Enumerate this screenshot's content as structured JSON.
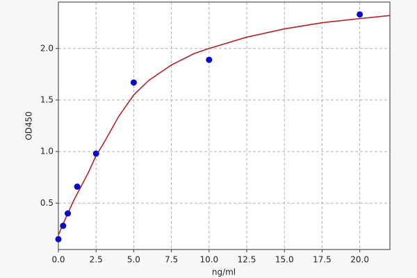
{
  "chart_data": {
    "type": "scatter",
    "xlabel": "ng/ml",
    "ylabel": "OD450",
    "x": [
      0,
      0.3125,
      0.625,
      1.25,
      2.5,
      5,
      10,
      20
    ],
    "values": [
      0.15,
      0.28,
      0.4,
      0.66,
      0.98,
      1.67,
      1.89,
      2.33
    ],
    "color": "#0a0acc",
    "curve": {
      "color": "#b22222",
      "x": [
        0,
        0.5,
        1,
        1.5,
        2,
        2.5,
        3,
        4,
        5,
        6,
        7.5,
        9,
        10,
        12.5,
        15,
        17.5,
        20,
        22
      ],
      "values": [
        0.19,
        0.36,
        0.52,
        0.66,
        0.8,
        0.96,
        1.08,
        1.34,
        1.55,
        1.69,
        1.84,
        1.95,
        2.0,
        2.11,
        2.19,
        2.25,
        2.29,
        2.32
      ]
    },
    "xlim": [
      0,
      22
    ],
    "ylim": [
      0.05,
      2.45
    ],
    "xticks": [
      {
        "value": 0,
        "label": "0.0"
      },
      {
        "value": 2.5,
        "label": "2.5"
      },
      {
        "value": 5,
        "label": "5.0"
      },
      {
        "value": 7.5,
        "label": "7.5"
      },
      {
        "value": 10,
        "label": "10.0"
      },
      {
        "value": 12.5,
        "label": "12.5"
      },
      {
        "value": 15,
        "label": "15.0"
      },
      {
        "value": 17.5,
        "label": "17.5"
      },
      {
        "value": 20,
        "label": "20.0"
      }
    ],
    "yticks": [
      0.5,
      {
        "value": 1,
        "label": "1.0"
      },
      1.5,
      {
        "value": 2,
        "label": "2.0"
      }
    ],
    "grid": true
  }
}
